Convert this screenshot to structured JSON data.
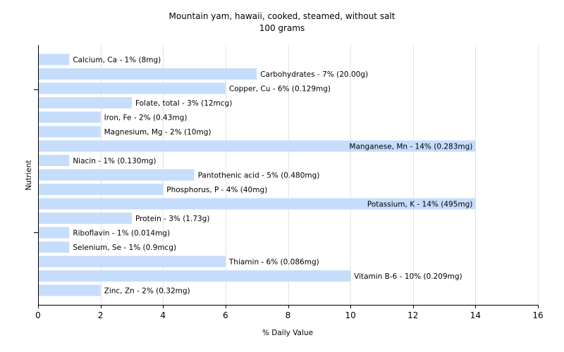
{
  "chart_data": {
    "type": "bar",
    "orientation": "horizontal",
    "title": "Mountain yam, hawaii, cooked, steamed, without salt",
    "subtitle": "100 grams",
    "xlabel": "% Daily Value",
    "ylabel": "Nutrient",
    "xlim": [
      0,
      16
    ],
    "xticks": [
      "0",
      "2",
      "4",
      "6",
      "8",
      "10",
      "12",
      "14",
      "16"
    ],
    "grid": true,
    "bar_color": "#c6ddfc",
    "categories": [
      "Calcium, Ca",
      "Carbohydrates",
      "Copper, Cu",
      "Folate, total",
      "Iron, Fe",
      "Magnesium, Mg",
      "Manganese, Mn",
      "Niacin",
      "Pantothenic acid",
      "Phosphorus, P",
      "Potassium, K",
      "Protein",
      "Riboflavin",
      "Selenium, Se",
      "Thiamin",
      "Vitamin B-6",
      "Zinc, Zn"
    ],
    "values": [
      1,
      7,
      6,
      3,
      2,
      2,
      14,
      1,
      5,
      4,
      14,
      3,
      1,
      1,
      6,
      10,
      2
    ],
    "labels": [
      "Calcium, Ca - 1% (8mg)",
      "Carbohydrates - 7% (20.00g)",
      "Copper, Cu - 6% (0.129mg)",
      "Folate, total - 3% (12mcg)",
      "Iron, Fe - 2% (0.43mg)",
      "Magnesium, Mg - 2% (10mg)",
      "Manganese, Mn - 14% (0.283mg)",
      "Niacin - 1% (0.130mg)",
      "Pantothenic acid - 5% (0.480mg)",
      "Phosphorus, P - 4% (40mg)",
      "Potassium, K - 14% (495mg)",
      "Protein - 3% (1.73g)",
      "Riboflavin - 1% (0.014mg)",
      "Selenium, Se - 1% (0.9mcg)",
      "Thiamin - 6% (0.086mg)",
      "Vitamin B-6 - 10% (0.209mg)",
      "Zinc, Zn - 2% (0.32mg)"
    ]
  }
}
